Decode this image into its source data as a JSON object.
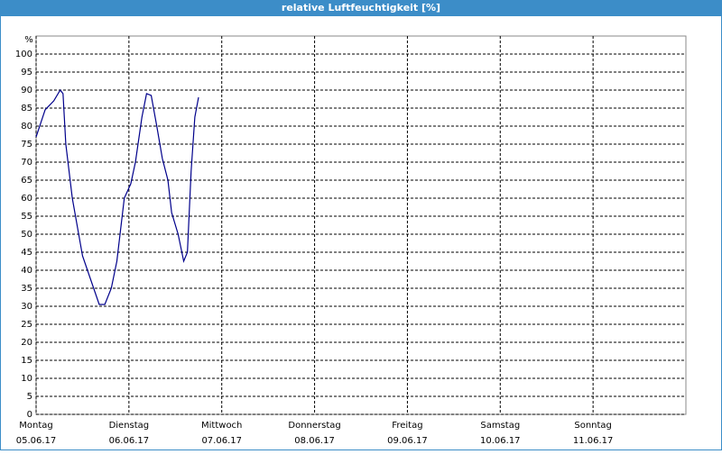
{
  "chart_data": {
    "type": "line",
    "title": "relative Luftfeuchtigkeit [%]",
    "y_unit": "%",
    "x": [
      0,
      0.097,
      0.19,
      0.26,
      0.29,
      0.32,
      0.39,
      0.5,
      0.62,
      0.68,
      0.74,
      0.81,
      0.87,
      0.95,
      1.02,
      1.07,
      1.14,
      1.19,
      1.24,
      1.3,
      1.36,
      1.42,
      1.46,
      1.53,
      1.59,
      1.63,
      1.67,
      1.71,
      1.75
    ],
    "series": [
      {
        "name": "relative Luftfeuchtigkeit",
        "color": "#00008b",
        "values": [
          77,
          84.5,
          87,
          90,
          89,
          75,
          60,
          44,
          35,
          30.5,
          30.5,
          35,
          42.5,
          60,
          64,
          70,
          82.5,
          89,
          88.5,
          80,
          71,
          65,
          56,
          50,
          42.5,
          45,
          67.5,
          82.5,
          88
        ]
      }
    ],
    "xlim": [
      0,
      7
    ],
    "xticks": [
      {
        "value": 0,
        "label": "Montag",
        "date": "05.06.17"
      },
      {
        "value": 1,
        "label": "Dienstag",
        "date": "06.06.17"
      },
      {
        "value": 2,
        "label": "Mittwoch",
        "date": "07.06.17"
      },
      {
        "value": 3,
        "label": "Donnerstag",
        "date": "08.06.17"
      },
      {
        "value": 4,
        "label": "Freitag",
        "date": "09.06.17"
      },
      {
        "value": 5,
        "label": "Samstag",
        "date": "10.06.17"
      },
      {
        "value": 6,
        "label": "Sonntag",
        "date": "11.06.17"
      }
    ],
    "ylim": [
      0,
      105
    ],
    "yticks": [
      0,
      5,
      10,
      15,
      20,
      25,
      30,
      35,
      40,
      45,
      50,
      55,
      60,
      65,
      70,
      75,
      80,
      85,
      90,
      95,
      100
    ],
    "grid": true
  }
}
